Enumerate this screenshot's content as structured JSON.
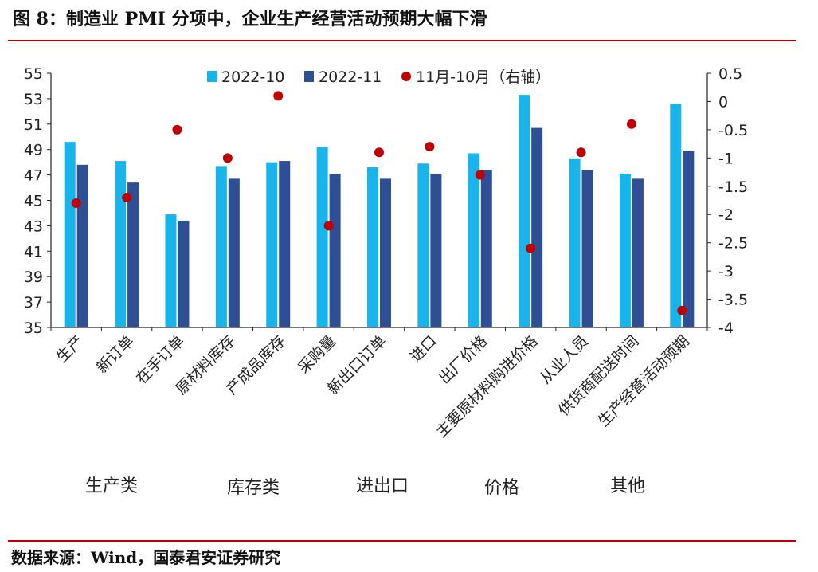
{
  "title": "图 8：制造业 PMI 分项中，企业生产经营活动预期大幅下滑",
  "source": "数据来源：Wind，国泰君安证券研究",
  "colors": {
    "s1": "#18b4ec",
    "s2": "#2e4f93",
    "dot": "#c00000",
    "axis": "#222222"
  },
  "chart_data": {
    "type": "bar",
    "categories": [
      "生产",
      "新订单",
      "在手订单",
      "原材料库存",
      "产成品库存",
      "采购量",
      "新出口订单",
      "进口",
      "出厂价格",
      "主要原材料购进价格",
      "从业人员",
      "供货商配送时间",
      "生产经营活动预期"
    ],
    "series": [
      {
        "name": "2022-10",
        "type": "bar",
        "axis": "left",
        "values": [
          49.6,
          48.1,
          43.9,
          47.7,
          48.0,
          49.2,
          47.6,
          47.9,
          48.7,
          53.3,
          48.3,
          47.1,
          52.6
        ]
      },
      {
        "name": "2022-11",
        "type": "bar",
        "axis": "left",
        "values": [
          47.8,
          46.4,
          43.4,
          46.7,
          48.1,
          47.1,
          46.7,
          47.1,
          47.4,
          50.7,
          47.4,
          46.7,
          48.9
        ]
      },
      {
        "name": "11月-10月（右轴）",
        "type": "scatter",
        "axis": "right",
        "values": [
          -1.8,
          -1.7,
          -0.5,
          -1.0,
          0.1,
          -2.2,
          -0.9,
          -0.8,
          -1.3,
          -2.6,
          -0.9,
          -0.4,
          -3.7
        ]
      }
    ],
    "left_axis": {
      "min": 35,
      "max": 55,
      "ticks": [
        "35",
        "37",
        "39",
        "41",
        "43",
        "45",
        "47",
        "49",
        "51",
        "53",
        "55"
      ]
    },
    "right_axis": {
      "min": -4,
      "max": 0.5,
      "ticks": [
        "0.5",
        "0",
        "-0.5",
        "-1",
        "-1.5",
        "-2",
        "-2.5",
        "-3",
        "-3.5",
        "-4"
      ]
    },
    "groups": [
      "生产类",
      "库存类",
      "进出口",
      "价格",
      "其他"
    ],
    "legend_position": "top-center",
    "grid": false
  }
}
